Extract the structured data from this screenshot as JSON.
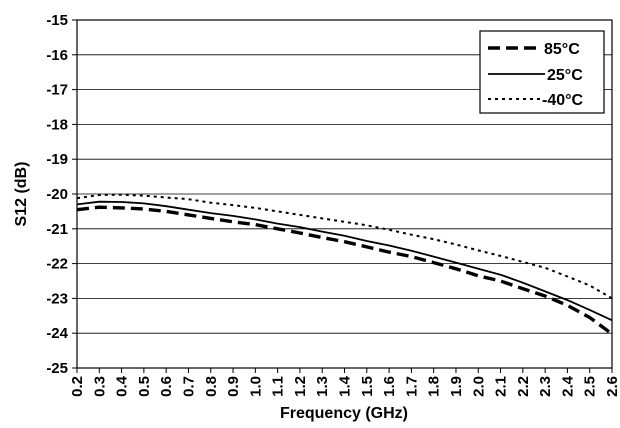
{
  "chart_data": {
    "type": "line",
    "title": "",
    "xlabel": "Frequency (GHz)",
    "ylabel": "S12 (dB)",
    "xlim": [
      0.2,
      2.6
    ],
    "ylim": [
      -25,
      -15
    ],
    "grid": true,
    "legend_position": "top-right",
    "x_ticks": [
      "0.2",
      "0.3",
      "0.4",
      "0.5",
      "0.6",
      "0.7",
      "0.8",
      "0.9",
      "1.0",
      "1.1",
      "1.2",
      "1.3",
      "1.4",
      "1.5",
      "1.6",
      "1.7",
      "1.8",
      "1.9",
      "2.0",
      "2.1",
      "2.2",
      "2.3",
      "2.4",
      "2.5",
      "2.6"
    ],
    "y_ticks": [
      "-15",
      "-16",
      "-17",
      "-18",
      "-19",
      "-20",
      "-21",
      "-22",
      "-23",
      "-24",
      "-25"
    ],
    "x": [
      0.2,
      0.3,
      0.4,
      0.5,
      0.6,
      0.7,
      0.8,
      0.9,
      1.0,
      1.1,
      1.2,
      1.3,
      1.4,
      1.5,
      1.6,
      1.7,
      1.8,
      1.9,
      2.0,
      2.1,
      2.2,
      2.3,
      2.4,
      2.5,
      2.6
    ],
    "series": [
      {
        "name": "85°C",
        "style": "dashed-thick",
        "values": [
          -20.45,
          -20.38,
          -20.4,
          -20.43,
          -20.5,
          -20.6,
          -20.7,
          -20.8,
          -20.88,
          -21.0,
          -21.12,
          -21.25,
          -21.37,
          -21.52,
          -21.67,
          -21.8,
          -21.97,
          -22.15,
          -22.35,
          -22.5,
          -22.72,
          -22.93,
          -23.2,
          -23.55,
          -24.02
        ]
      },
      {
        "name": "25°C",
        "style": "solid",
        "values": [
          -20.3,
          -20.22,
          -20.23,
          -20.27,
          -20.35,
          -20.45,
          -20.55,
          -20.63,
          -20.73,
          -20.85,
          -20.95,
          -21.08,
          -21.2,
          -21.35,
          -21.48,
          -21.63,
          -21.8,
          -21.97,
          -22.15,
          -22.32,
          -22.55,
          -22.8,
          -23.05,
          -23.33,
          -23.63
        ]
      },
      {
        "name": "-40°C",
        "style": "dotted",
        "values": [
          -20.12,
          -20.03,
          -20.02,
          -20.05,
          -20.1,
          -20.15,
          -20.25,
          -20.32,
          -20.4,
          -20.5,
          -20.6,
          -20.7,
          -20.8,
          -20.9,
          -21.03,
          -21.17,
          -21.3,
          -21.45,
          -21.62,
          -21.78,
          -21.95,
          -22.12,
          -22.37,
          -22.63,
          -23.0
        ]
      }
    ]
  }
}
